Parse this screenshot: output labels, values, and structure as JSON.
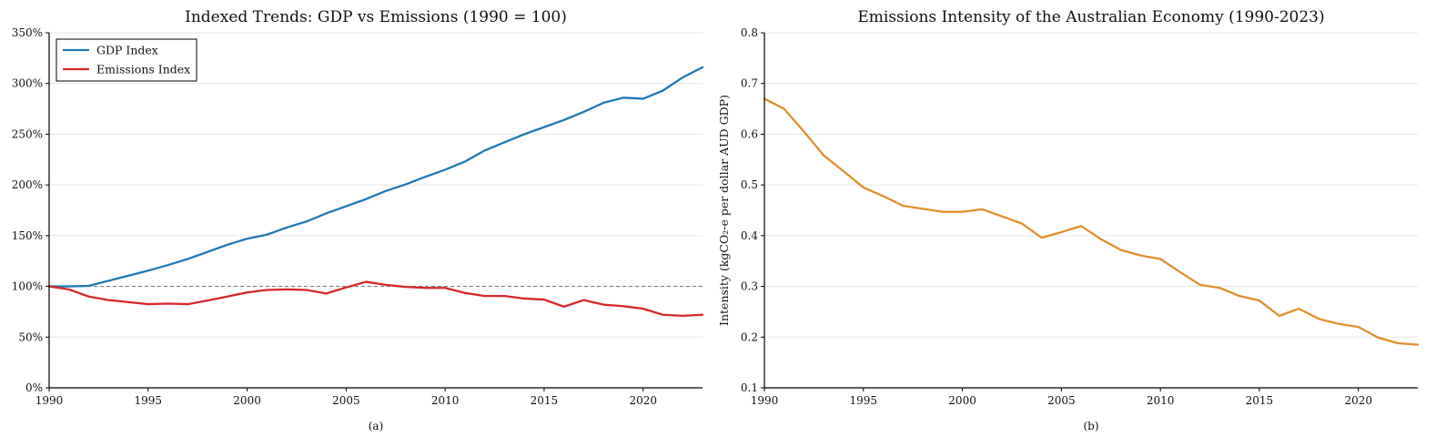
{
  "chart_data": [
    {
      "type": "line",
      "title": "Indexed Trends: GDP vs Emissions (1990 = 100)",
      "subcaption": "(a)",
      "xlabel": "",
      "ylabel": "",
      "xlim": [
        1990,
        2023
      ],
      "ylim": [
        0,
        350
      ],
      "x_ticks": [
        1990,
        1995,
        2000,
        2005,
        2010,
        2015,
        2020
      ],
      "y_ticks": [
        0,
        50,
        100,
        150,
        200,
        250,
        300,
        350
      ],
      "y_tick_labels": [
        "0%",
        "50%",
        "100%",
        "150%",
        "200%",
        "250%",
        "300%",
        "350%"
      ],
      "grid": "horizontal",
      "legend_position": "top-left",
      "reference_line": {
        "y": 100,
        "style": "dashed",
        "color": "#7f7f7f"
      },
      "x": [
        1990,
        1991,
        1992,
        1993,
        1994,
        1995,
        1996,
        1997,
        1998,
        1999,
        2000,
        2001,
        2002,
        2003,
        2004,
        2005,
        2006,
        2007,
        2008,
        2009,
        2010,
        2011,
        2012,
        2013,
        2014,
        2015,
        2016,
        2017,
        2018,
        2019,
        2020,
        2021,
        2022,
        2023
      ],
      "series": [
        {
          "name": "GDP Index",
          "color": "#1f77b4",
          "values": [
            100,
            100,
            100.5,
            105.5,
            110.5,
            115.5,
            121,
            127,
            134,
            141,
            147,
            151,
            158,
            164,
            172,
            179,
            186,
            194,
            200.5,
            208,
            215,
            223,
            234,
            242,
            250,
            257,
            264,
            272,
            281,
            286,
            285,
            293,
            306,
            316
          ]
        },
        {
          "name": "Emissions Index",
          "color": "#d62728",
          "values": [
            100,
            97,
            90,
            86.5,
            84.5,
            82.5,
            83,
            82.5,
            86,
            90,
            94,
            96.5,
            97,
            96.5,
            93,
            99,
            104.5,
            101.5,
            99.5,
            98.5,
            98.5,
            93.5,
            90.5,
            90.5,
            88,
            87,
            80,
            86.5,
            82,
            80.5,
            78,
            72,
            71,
            72
          ]
        }
      ]
    },
    {
      "type": "line",
      "title": "Emissions Intensity of the Australian Economy (1990-2023)",
      "subcaption": "(b)",
      "xlabel": "",
      "ylabel": "Intensity (kgCO₂-e per dollar AUD GDP)",
      "xlim": [
        1990,
        2023
      ],
      "ylim": [
        0.1,
        0.8
      ],
      "x_ticks": [
        1990,
        1995,
        2000,
        2005,
        2010,
        2015,
        2020
      ],
      "y_ticks": [
        0.1,
        0.2,
        0.3,
        0.4,
        0.5,
        0.6,
        0.7,
        0.8
      ],
      "y_tick_labels": [
        "0.1",
        "0.2",
        "0.3",
        "0.4",
        "0.5",
        "0.6",
        "0.7",
        "0.8"
      ],
      "grid": "horizontal",
      "x": [
        1990,
        1991,
        1992,
        1993,
        1994,
        1995,
        1996,
        1997,
        1998,
        1999,
        2000,
        2001,
        2002,
        2003,
        2004,
        2005,
        2006,
        2007,
        2008,
        2009,
        2010,
        2011,
        2012,
        2013,
        2014,
        2015,
        2016,
        2017,
        2018,
        2019,
        2020,
        2021,
        2022,
        2023
      ],
      "series": [
        {
          "name": "",
          "color": "#e08f2e",
          "values": [
            0.67,
            0.65,
            0.605,
            0.558,
            0.527,
            0.495,
            0.478,
            0.459,
            0.453,
            0.447,
            0.447,
            0.452,
            0.438,
            0.424,
            0.396,
            0.407,
            0.419,
            0.393,
            0.372,
            0.361,
            0.354,
            0.328,
            0.303,
            0.297,
            0.281,
            0.272,
            0.242,
            0.256,
            0.236,
            0.226,
            0.22,
            0.199,
            0.188,
            0.185
          ]
        }
      ]
    }
  ]
}
